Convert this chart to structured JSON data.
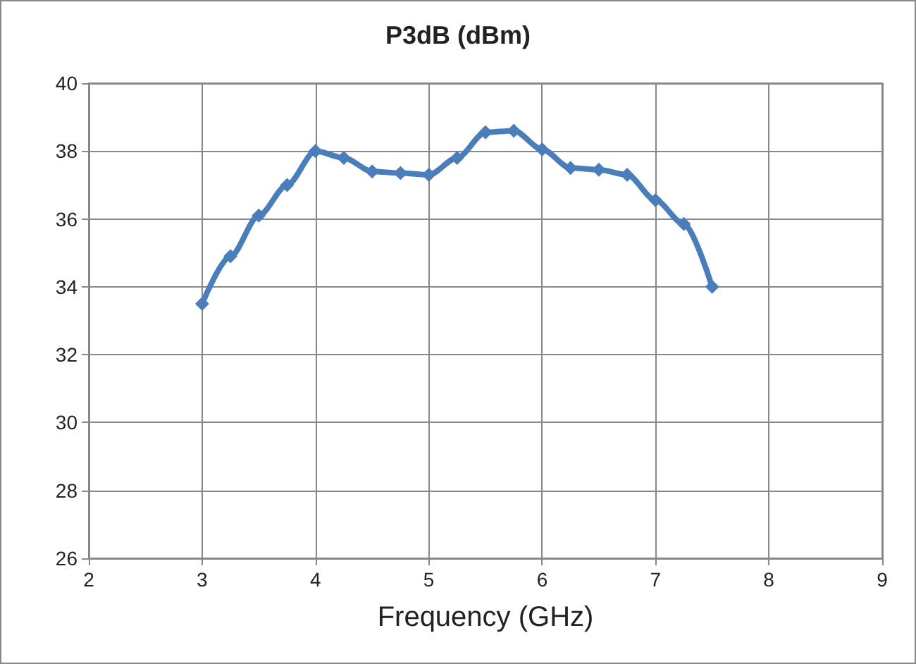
{
  "chart_data": {
    "type": "line",
    "title": "P3dB (dBm)",
    "xlabel": "Frequency (GHz)",
    "x": [
      3,
      3.25,
      3.5,
      3.75,
      4,
      4.25,
      4.5,
      4.75,
      5,
      5.25,
      5.5,
      5.75,
      6,
      6.25,
      6.5,
      6.75,
      7,
      7.25,
      7.5
    ],
    "series": [
      {
        "color": "#4a7ebb",
        "values": [
          33.5,
          34.9,
          36.1,
          37.0,
          38.0,
          37.8,
          37.4,
          37.35,
          37.3,
          37.8,
          38.55,
          38.6,
          38.05,
          37.5,
          37.45,
          37.3,
          36.55,
          35.85,
          34.0
        ]
      }
    ],
    "xlim": [
      2,
      9
    ],
    "xticks": [
      2,
      3,
      4,
      5,
      6,
      7,
      8,
      9
    ],
    "ylim": [
      26,
      40
    ],
    "yticks": [
      26,
      28,
      30,
      32,
      34,
      36,
      38,
      40
    ],
    "grid": true,
    "marker": "diamond",
    "line_style": "solid"
  }
}
